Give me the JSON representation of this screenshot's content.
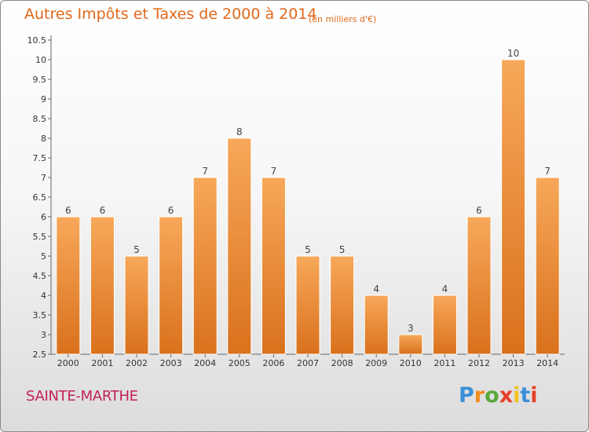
{
  "title": "Autres Impôts et Taxes de 2000 à 2014",
  "subtitle": "(en milliers d'€)",
  "commune": "SAINTE-MARTHE",
  "brand": {
    "letters": [
      "P",
      "r",
      "o",
      "x",
      "i",
      "t",
      "i"
    ],
    "colors": [
      "#3a8fd8",
      "#f28a1e",
      "#5aa83a",
      "#e8402a",
      "#f2c21e",
      "#3a8fd8",
      "#e8402a"
    ]
  },
  "colors": {
    "accent": "#e0681b",
    "commune": "#c0225a",
    "bar_top": "#f7a85a",
    "bar_bottom": "#d9711c"
  },
  "chart_data": {
    "type": "bar",
    "categories": [
      "2000",
      "2001",
      "2002",
      "2003",
      "2004",
      "2005",
      "2006",
      "2007",
      "2008",
      "2009",
      "2010",
      "2011",
      "2012",
      "2013",
      "2014"
    ],
    "values": [
      6,
      6,
      5,
      6,
      7,
      8,
      7,
      5,
      5,
      4,
      3,
      4,
      6,
      10,
      7
    ],
    "data_labels": [
      "6",
      "6",
      "5",
      "6",
      "7",
      "8",
      "7",
      "5",
      "5",
      "4",
      "3",
      "4",
      "6",
      "10",
      "7"
    ],
    "ylim": [
      2.5,
      10.5
    ],
    "yticks": [
      "2.5",
      "3",
      "3.5",
      "4",
      "4.5",
      "5",
      "5.5",
      "6",
      "6.5",
      "7",
      "7.5",
      "8",
      "8.5",
      "9",
      "9.5",
      "10",
      "10.5"
    ],
    "grid": false
  }
}
